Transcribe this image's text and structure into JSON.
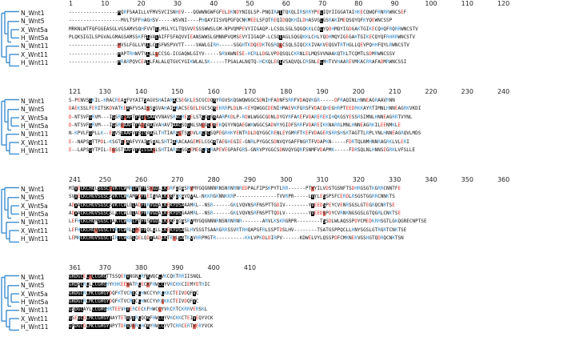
{
  "rulers": [
    [
      "1",
      "10",
      "20",
      "30",
      "40",
      "50",
      "60",
      "70",
      "80",
      "90",
      "100",
      "110",
      "120"
    ],
    [
      "121",
      "130",
      "140",
      "150",
      "160",
      "170",
      "180",
      "190",
      "200",
      "210",
      "220",
      "230",
      "240"
    ],
    [
      "241",
      "250",
      "260",
      "270",
      "280",
      "290",
      "300",
      "310",
      "320",
      "330",
      "340",
      "350",
      "360"
    ],
    [
      "361",
      "370",
      "380",
      "390",
      "400",
      "410"
    ]
  ],
  "names": [
    "N_Wnt1",
    "N_Wnt5",
    "X_Wnt5a",
    "H_Wnt5a",
    "N_Wnt11",
    "X_Wnt11",
    "H_Wnt11"
  ],
  "sequences": [
    [
      "-----------------MQRFSAAILLVFMVSVCISNHEV---QGWWNGWFGFELDKNDYNIQLSP-PNQIRALTQKQLIRSRRYPELIQYIIGGATAIHKECQWQFRNRRWNCSEF",
      "------------------MVLTSFFHAGHSV-----WSVNI----PHQAYIISVQPGFQCNKMEELSFQTREQIDQQKHILDHASVGLGSRAKIMEQSQYQFKYQEWNCSSP",
      "MRKNLWTFQFGGEASGLVGSAMVSQHFVVTLLMSLYCLTQSVVESSSWWSLGM-NPVQMPEVYIIGAQP-LCSQLSGLSQGQKKLCQLYQDHMQYIGDGAKTGIKECQHQFRQRRWNCSTV",
      "PLQKSIGILSPGVALGMAGSAMSSKFFLVALAIFFSFAQVVIEANSWWSLGMNNPVQMSEVYIIGAQP-LCSQLAGLSQGQKKLCHLYQDHMQYIGEGAKTGIKECQYQFRHRRWNCSTV",
      "-----------------MVSLFGLLVVLLCLSFWSPVVTT----VAWLGIRH-----SGGHTKDQEDKTGSRQLCSQLSIQCKKIVAKVEQGVTRTHGLLQEVPQHHFQYLRWNCSTV",
      "-----------------MAPTRHWVTVLLLLCCSG-ICGAQWLGIYV-----SRVAWNESE-HCRLLDGLVPDQSQLCKRNLELMQSVVNAAKQTKLTCQMTLSDMRWNCSSV",
      "-----------------MRARPQVCEALLFALALQTGVCYGIKWLALSK-----TPSALALNQTQ-HCKQLEGLVSAQVQLCRSNLELMHTVVHAAREVMKACRRAFADMRWNCSSI"
    ],
    [
      "S-PENVSGKIL-KRACREAAFVYAITSAGVSHAIARACSEGKLESCGCDQRYRGVSKQGWQWGGCSDNIHFADNFSRRFVDAQVKGR-----DFRAQINLHNNEAGRAAVRNN",
      "DAEKSSLFERITSKDVATKEAAFVSAISSAGVAHAIARACSEGELEGCSCREKRRPLDLN-KEYQWGGCDENIHMAEVKFGRSFVDAEQHEGHRPTEEDRKKAYRTIMNLHNNEAGRKVKDI",
      "D-NTSVFGRVM---IGSREAAFTYAISSAAVVNAVSRACREGELSTCGCSRAARPKDLP-RDWLWGGCGDNLDYGYRFAKEFVDAREREKIHQKGSYESSRSIMNLHNNEAGRRTVYNL",
      "D-NTSVFGRVM---IGSREAAFTYAISAAGVAHAVTAACSQGNLSNCGCDREKQGYYNQAEGWKWGGCSADVRYGIDFSRRFVDAREIKKNARRLMNLHNNEAGRKILEENMKLE",
      "N-KPVLFGPLLK--EGVSEAAFVYSISAASLTHTIARACTSGDVLKCQCSQPEGRHKYENTRDLDQYGGCRENLEYGMRFTKEFVDAGERSRRSHSKTAGTTLRPLYNLHNNEAGRQVLMDS",
      "E--NAPSGTTPDL-KSGTEEAAFVYAISSAALSHTIARACAAGEMELCGCRTAEGHEGIE-GNRLPYGGCSDNVQYGAFFNGRTFVDAPKN-----FDRTQLNMHNNRAGRKLVLERI",
      "E--LAPSGYTPIL-EGSSTAAFVYAISSAALSHTIARACSGGEMEGCRCRAPEVEGPAFGRS-GNRVPYGGCSDNVQYGQRFSNMFVDAPMK-----FDRSQLNLHNNSEGRKLVFSLLE"
    ],
    [
      "MIVECKCHGLSGSCTVKTCWMRLPTFRSVGDLLKDRFDGASRVMYGQGNNNRNSNRNRNREDPALFIPSKPYTLRR------PTVYILVDSTGSNFTSDHRGSGTKGRRCNNTFE",
      "SVVECKCHGVSGSCSVKTCWKAMPDFREIGNALKDKFDKAVQVAL-NKKRGKNNKKRP--------------TVVRPR-----LVYLESSPSFCERDLRSGSTGGRRCNNKTS",
      "ADVACKCHGVSGSCSVKTCWLQLADFRKVGDALKEKYDSAAAMKL--NSR------GKLVQVNSRFNSPTTGDIV--------YVEEDSPEYCVENRSGSLGTEGRQCNRTSE",
      "ADVACKCHGVSGSCSLKTCWLQLADFRKVGDALKEKYDSGAAMRL--NSR------GKLVQVNSRFNSPTTQDLV--------YVEEDSPDYCVRNKNGSGSLGTQGRLCNKTSE",
      "LEFHCKCHGMSGSCTAKTCWRRLPTFRSVGDLLKDKFDGASRVMYGQGNNNRNSNRNRNR-------ARVLKSKRGRPR--------TSSDLWLAQSSPDYCMEDKRHSGTLGKQGRECNPTSE",
      "LEFHCKCHGVSGSCTVRTCWRLLPEFRQLGLLLKEKYDSASLHVSSSTSAARGRRSSVRTRHQAPGFRLSSPTDSLHV--------TSATGSPPQCLLHNYSGSLGTRGRTCNKTSE",
      "LEMKCKCHGVSGSCTIRTCWKGLQELQDVAADLKTRYLSATKVVHRPMGTR----------KHLVPKDLDIRPV------KDWELVYLQSSPDFCMKNEKVGSHGTQDRQCNKTSN"
    ],
    [
      "GRDGCELMCCGRGTTSSQERVNGNCRFKWQCCVKCQKTRRIISNQL",
      "GRDACRLLCCGRGHYKHKEEVATRCECKFHWCCYVKCKKCIEMYDTHIC",
      "GRDGCRLMCCGRGYDQFKTVCRECCHWCCYVKCKKCTEIVDQFVC",
      "GRDGCRLMCCGRGYDQFKTVCRECCHWCCYVKCKKCTEIVDQFVC",
      "GSDGCAYLCCGRGHRTEEVHVERCECKFHWCCYVKCRTCKRRVERSKL",
      "GSEGCDLMCCGRGYNAYTETVVERCQCKFHWCCYVKCKKCTEIVEQYVCK",
      "GPDGCDLMCCGRGYNPYTDRVVERCHCKYHWCCYVTCRRCERTVERYVCK"
    ]
  ]
}
